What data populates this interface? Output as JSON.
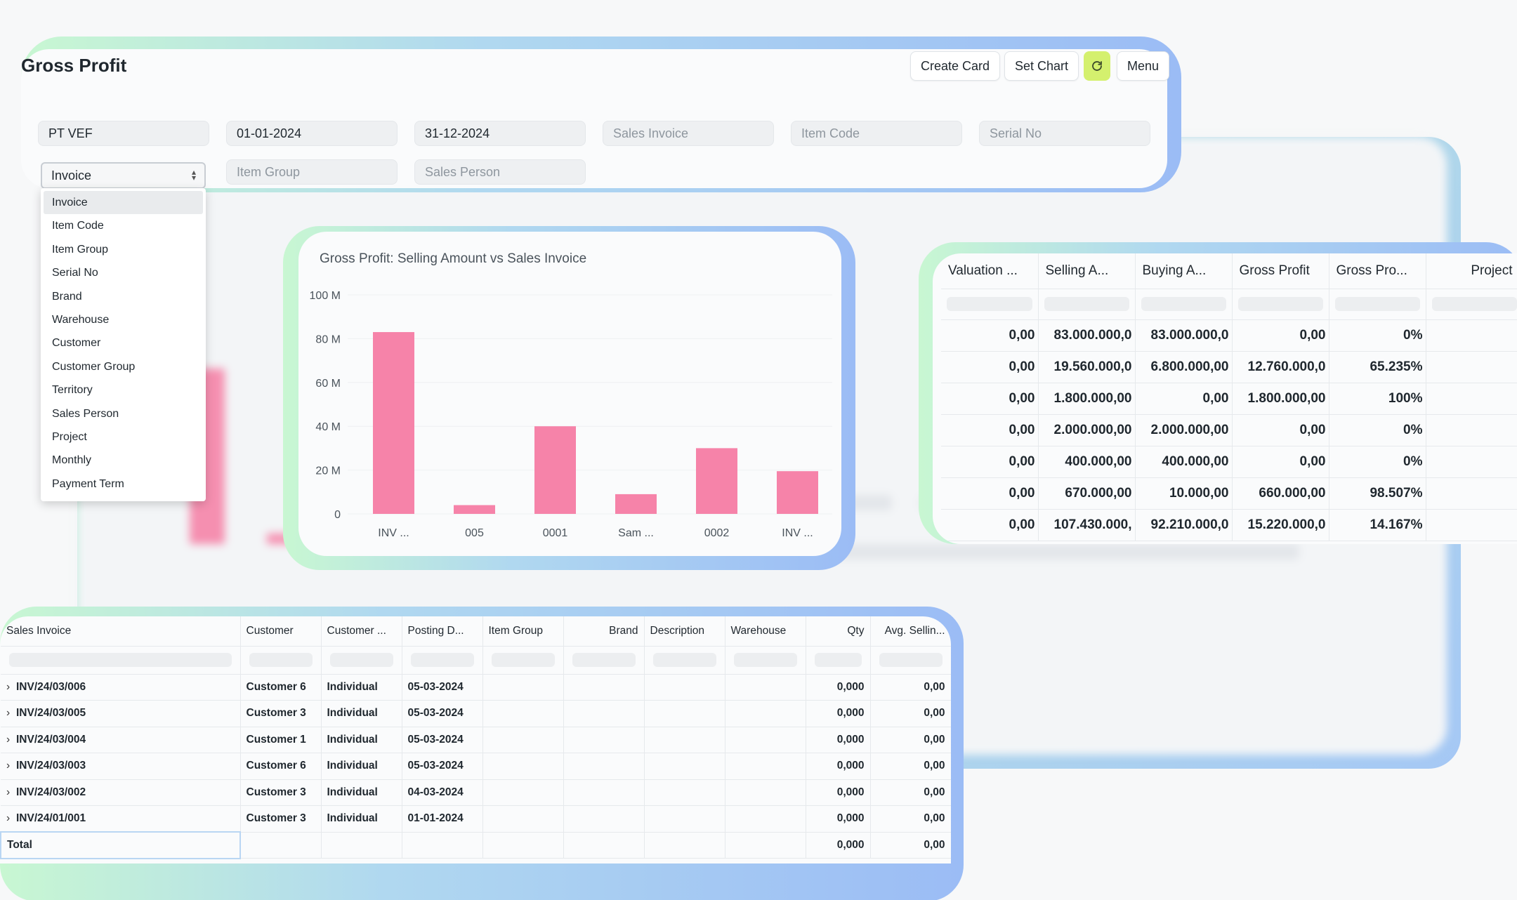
{
  "header": {
    "title": "Gross Profit",
    "buttons": {
      "create_card": "Create Card",
      "set_chart": "Set Chart",
      "menu": "Menu"
    },
    "refresh_icon": "refresh-icon",
    "accent": "#d4f06e"
  },
  "filters": {
    "company": "PT VEF",
    "from_date": "01-01-2024",
    "to_date": "31-12-2024",
    "sales_invoice_ph": "Sales Invoice",
    "item_code_ph": "Item Code",
    "serial_no_ph": "Serial No",
    "group_by": "Invoice",
    "item_group_ph": "Item Group",
    "sales_person_ph": "Sales Person"
  },
  "dropdown": {
    "items": [
      "Invoice",
      "Item Code",
      "Item Group",
      "Serial No",
      "Brand",
      "Warehouse",
      "Customer",
      "Customer Group",
      "Territory",
      "Sales Person",
      "Project",
      "Monthly",
      "Payment Term"
    ],
    "selected": "Invoice"
  },
  "chart_data": {
    "type": "bar",
    "title": "Gross Profit: Selling Amount vs Sales Invoice",
    "categories": [
      "INV ...",
      "005",
      "0001",
      "Sam ...",
      "0002",
      "INV ..."
    ],
    "values": [
      83000000,
      4000000,
      40000000,
      9000000,
      30000000,
      19500000
    ],
    "ylim": [
      0,
      100000000
    ],
    "yticks": [
      "0",
      "20 M",
      "40 M",
      "60 M",
      "80 M",
      "100 M"
    ],
    "color": "#f683a9",
    "grid": true
  },
  "right_table": {
    "headers": [
      "Valuation ...",
      "Selling A...",
      "Buying A...",
      "Gross Profit",
      "Gross Pro...",
      "Project"
    ],
    "rows": [
      [
        "0,00",
        "83.000.000,0",
        "83.000.000,0",
        "0,00",
        "0%",
        ""
      ],
      [
        "0,00",
        "19.560.000,0",
        "6.800.000,00",
        "12.760.000,0",
        "65.235%",
        ""
      ],
      [
        "0,00",
        "1.800.000,00",
        "0,00",
        "1.800.000,00",
        "100%",
        ""
      ],
      [
        "0,00",
        "2.000.000,00",
        "2.000.000,00",
        "0,00",
        "0%",
        ""
      ],
      [
        "0,00",
        "400.000,00",
        "400.000,00",
        "0,00",
        "0%",
        ""
      ],
      [
        "0,00",
        "670.000,00",
        "10.000,00",
        "660.000,00",
        "98.507%",
        ""
      ],
      [
        "0,00",
        "107.430.000,",
        "92.210.000,0",
        "15.220.000,0",
        "14.167%",
        ""
      ]
    ]
  },
  "bottom_table": {
    "headers": [
      "Sales Invoice",
      "Customer",
      "Customer ...",
      "Posting D...",
      "Item Group",
      "Brand",
      "Description",
      "Warehouse",
      "Qty",
      "Avg. Sellin..."
    ],
    "rows": [
      [
        "INV/24/03/006",
        "Customer 6",
        "Individual",
        "05-03-2024",
        "",
        "",
        "",
        "",
        "0,000",
        "0,00"
      ],
      [
        "INV/24/03/005",
        "Customer 3",
        "Individual",
        "05-03-2024",
        "",
        "",
        "",
        "",
        "0,000",
        "0,00"
      ],
      [
        "INV/24/03/004",
        "Customer 1",
        "Individual",
        "05-03-2024",
        "",
        "",
        "",
        "",
        "0,000",
        "0,00"
      ],
      [
        "INV/24/03/003",
        "Customer 6",
        "Individual",
        "05-03-2024",
        "",
        "",
        "",
        "",
        "0,000",
        "0,00"
      ],
      [
        "INV/24/03/002",
        "Customer 3",
        "Individual",
        "04-03-2024",
        "",
        "",
        "",
        "",
        "0,000",
        "0,00"
      ],
      [
        "INV/24/01/001",
        "Customer 3",
        "Individual",
        "01-01-2024",
        "",
        "",
        "",
        "",
        "0,000",
        "0,00"
      ]
    ],
    "total_label": "Total",
    "total_qty": "0,000",
    "total_avg": "0,00"
  }
}
